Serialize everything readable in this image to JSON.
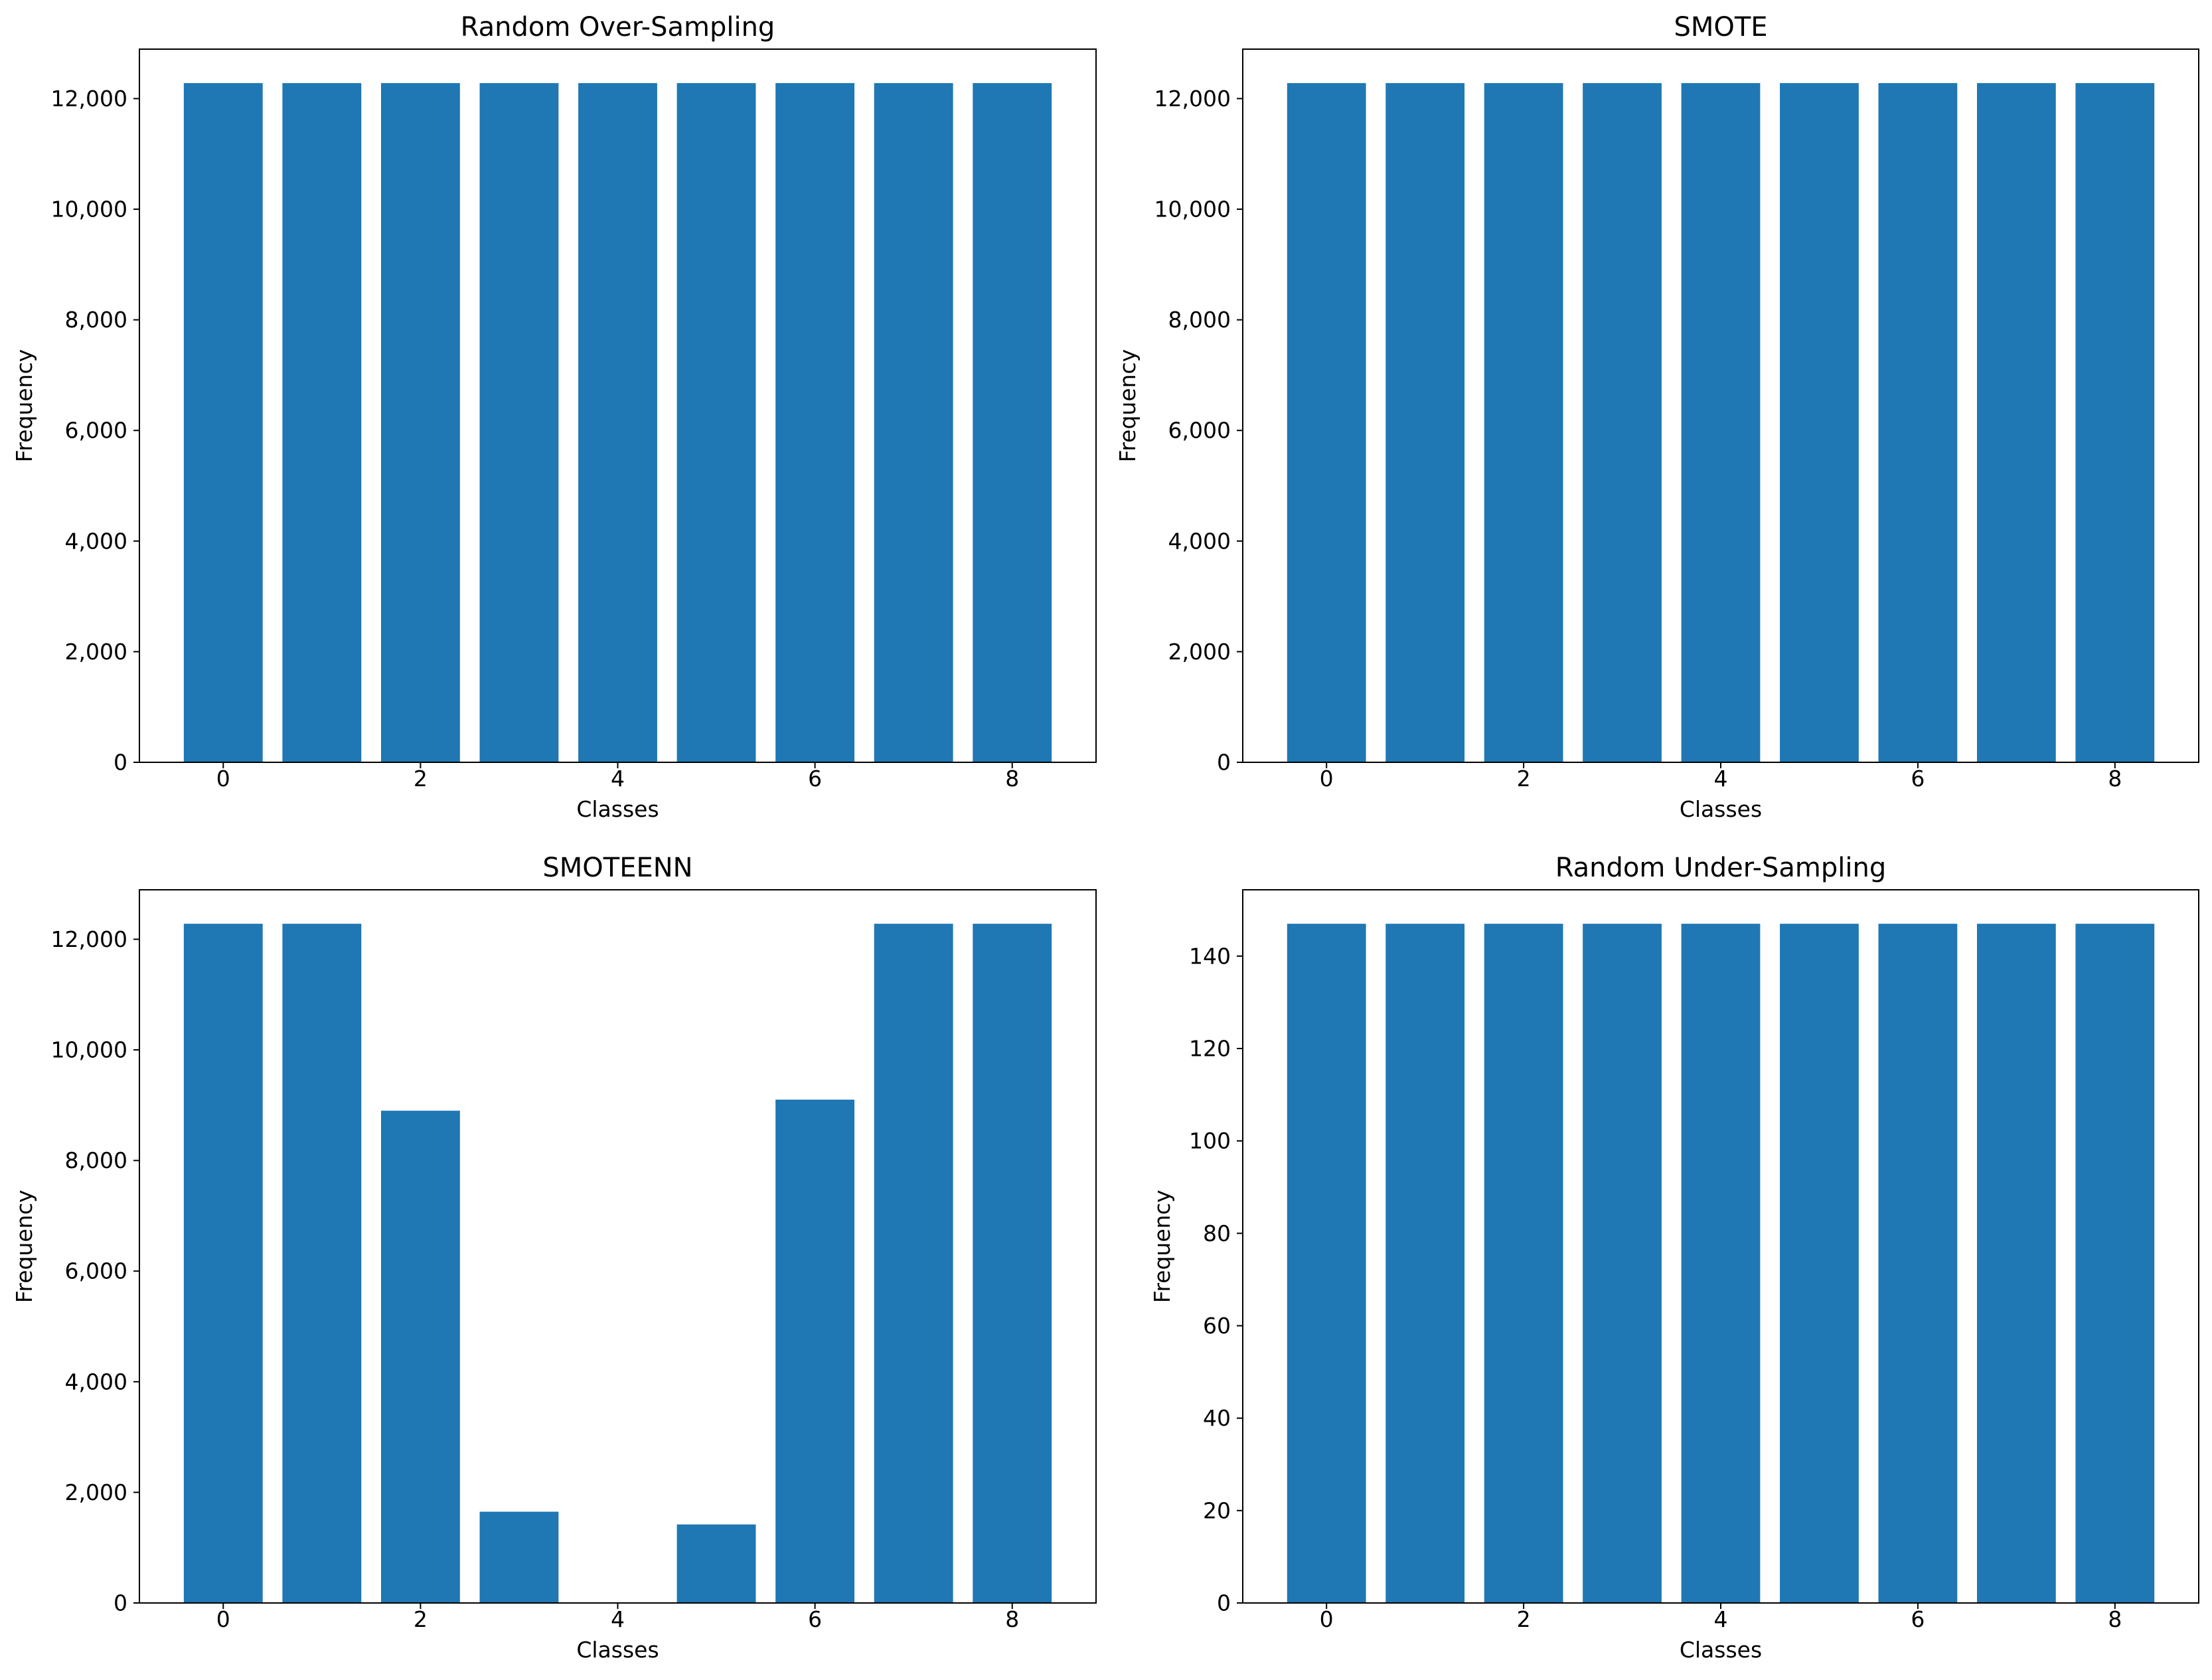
{
  "chart_data": [
    {
      "type": "bar",
      "title": "Random Over-Sampling",
      "xlabel": "Classes",
      "ylabel": "Frequency",
      "categories": [
        0,
        1,
        2,
        3,
        4,
        5,
        6,
        7,
        8
      ],
      "values": [
        12280,
        12280,
        12280,
        12280,
        12280,
        12280,
        12280,
        12280,
        12280
      ],
      "ylim": [
        0,
        12894
      ],
      "xlim": [
        -0.85,
        8.85
      ],
      "yticks": [
        0,
        2000,
        4000,
        6000,
        8000,
        10000,
        12000
      ],
      "ytick_labels": [
        "0",
        "2,000",
        "4,000",
        "6,000",
        "8,000",
        "10,000",
        "12,000"
      ],
      "xticks": [
        0,
        2,
        4,
        6,
        8
      ],
      "xtick_labels": [
        "0",
        "2",
        "4",
        "6",
        "8"
      ],
      "bar_color": "#1f77b4",
      "grid": false,
      "legend": "none"
    },
    {
      "type": "bar",
      "title": "SMOTE",
      "xlabel": "Classes",
      "ylabel": "Frequency",
      "categories": [
        0,
        1,
        2,
        3,
        4,
        5,
        6,
        7,
        8
      ],
      "values": [
        12280,
        12280,
        12280,
        12280,
        12280,
        12280,
        12280,
        12280,
        12280
      ],
      "ylim": [
        0,
        12894
      ],
      "xlim": [
        -0.85,
        8.85
      ],
      "yticks": [
        0,
        2000,
        4000,
        6000,
        8000,
        10000,
        12000
      ],
      "ytick_labels": [
        "0",
        "2,000",
        "4,000",
        "6,000",
        "8,000",
        "10,000",
        "12,000"
      ],
      "xticks": [
        0,
        2,
        4,
        6,
        8
      ],
      "xtick_labels": [
        "0",
        "2",
        "4",
        "6",
        "8"
      ],
      "bar_color": "#1f77b4",
      "grid": false,
      "legend": "none"
    },
    {
      "type": "bar",
      "title": "SMOTEENN",
      "xlabel": "Classes",
      "ylabel": "Frequency",
      "categories": [
        0,
        1,
        2,
        3,
        4,
        5,
        6,
        7,
        8
      ],
      "values": [
        12280,
        12280,
        8900,
        1650,
        0,
        1420,
        9100,
        12280,
        12280
      ],
      "ylim": [
        0,
        12894
      ],
      "xlim": [
        -0.85,
        8.85
      ],
      "yticks": [
        0,
        2000,
        4000,
        6000,
        8000,
        10000,
        12000
      ],
      "ytick_labels": [
        "0",
        "2,000",
        "4,000",
        "6,000",
        "8,000",
        "10,000",
        "12,000"
      ],
      "xticks": [
        0,
        2,
        4,
        6,
        8
      ],
      "xtick_labels": [
        "0",
        "2",
        "4",
        "6",
        "8"
      ],
      "bar_color": "#1f77b4",
      "grid": false,
      "legend": "none"
    },
    {
      "type": "bar",
      "title": "Random Under-Sampling",
      "xlabel": "Classes",
      "ylabel": "Frequency",
      "categories": [
        0,
        1,
        2,
        3,
        4,
        5,
        6,
        7,
        8
      ],
      "values": [
        147,
        147,
        147,
        147,
        147,
        147,
        147,
        147,
        147
      ],
      "ylim": [
        0,
        154.35
      ],
      "xlim": [
        -0.85,
        8.85
      ],
      "yticks": [
        0,
        20,
        40,
        60,
        80,
        100,
        120,
        140
      ],
      "ytick_labels": [
        "0",
        "20",
        "40",
        "60",
        "80",
        "100",
        "120",
        "140"
      ],
      "xticks": [
        0,
        2,
        4,
        6,
        8
      ],
      "xtick_labels": [
        "0",
        "2",
        "4",
        "6",
        "8"
      ],
      "bar_color": "#1f77b4",
      "grid": false,
      "legend": "none"
    }
  ]
}
